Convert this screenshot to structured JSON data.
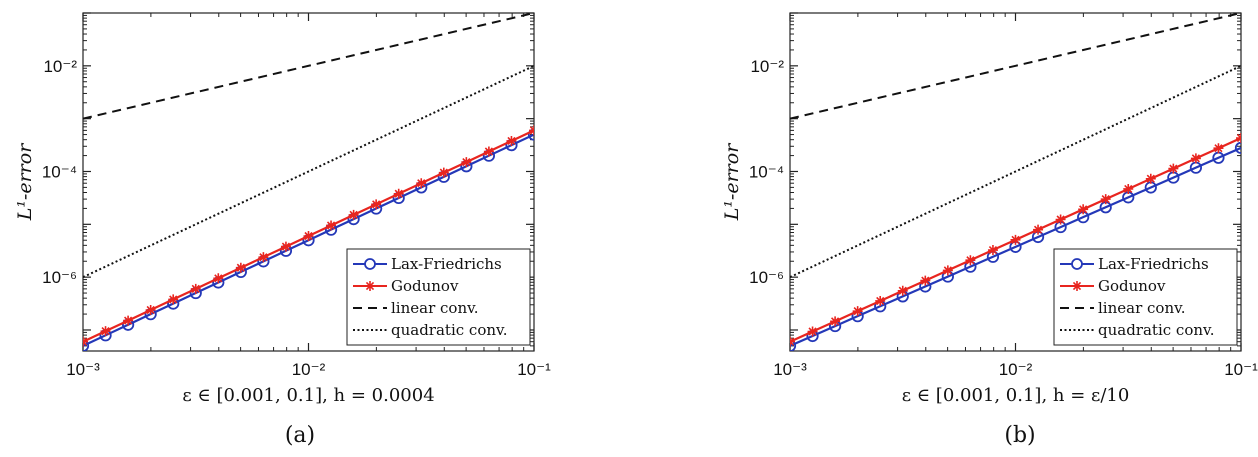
{
  "chart_data": [
    {
      "type": "line",
      "panel_caption": "(a)",
      "xlabel": "ε ∈ [0.001, 0.1], h = 0.0004",
      "ylabel": "L¹-error",
      "xscale": "log",
      "yscale": "log",
      "xlim": [
        0.001,
        0.1
      ],
      "ylim": [
        4e-08,
        0.1
      ],
      "xticks": [
        0.001,
        0.01,
        0.1
      ],
      "xtick_labels": [
        "10⁻³",
        "10⁻²",
        "10⁻¹"
      ],
      "yticks": [
        1e-06,
        0.0001,
        0.01
      ],
      "ytick_labels": [
        "10⁻⁶",
        "10⁻⁴",
        "10⁻²"
      ],
      "legend_position": "bottom-right",
      "series": [
        {
          "name": "Lax-Friedrichs",
          "color": "#2438b8",
          "marker": "circle",
          "line": "solid",
          "start": 0.001,
          "end": 0.1,
          "n_points": 21,
          "y_start": 5e-08,
          "y_end": 0.0005
        },
        {
          "name": "Godunov",
          "color": "#e8251f",
          "marker": "star",
          "line": "solid",
          "start": 0.001,
          "end": 0.1,
          "n_points": 21,
          "y_start": 6e-08,
          "y_end": 0.0006
        },
        {
          "name": "linear conv.",
          "color": "#111111",
          "marker": "none",
          "line": "dashed",
          "x": [
            0.001,
            0.1
          ],
          "y": [
            0.001,
            0.1
          ]
        },
        {
          "name": "quadratic conv.",
          "color": "#111111",
          "marker": "none",
          "line": "dotted",
          "x": [
            0.001,
            0.1
          ],
          "y": [
            1e-06,
            0.01
          ]
        }
      ]
    },
    {
      "type": "line",
      "panel_caption": "(b)",
      "xlabel": "ε ∈ [0.001, 0.1], h = ε/10",
      "ylabel": "L¹-error",
      "xscale": "log",
      "yscale": "log",
      "xlim": [
        0.001,
        0.1
      ],
      "ylim": [
        4e-08,
        0.1
      ],
      "xticks": [
        0.001,
        0.01,
        0.1
      ],
      "xtick_labels": [
        "10⁻³",
        "10⁻²",
        "10⁻¹"
      ],
      "yticks": [
        1e-06,
        0.0001,
        0.01
      ],
      "ytick_labels": [
        "10⁻⁶",
        "10⁻⁴",
        "10⁻²"
      ],
      "legend_position": "bottom-right",
      "series": [
        {
          "name": "Lax-Friedrichs",
          "color": "#2438b8",
          "marker": "circle",
          "line": "solid",
          "start": 0.001,
          "end": 0.1,
          "n_points": 21,
          "y_start": 5e-08,
          "y_end": 0.00028
        },
        {
          "name": "Godunov",
          "color": "#e8251f",
          "marker": "star",
          "line": "solid",
          "start": 0.001,
          "end": 0.1,
          "n_points": 21,
          "y_start": 6e-08,
          "y_end": 0.00043
        },
        {
          "name": "linear conv.",
          "color": "#111111",
          "marker": "none",
          "line": "dashed",
          "x": [
            0.001,
            0.1
          ],
          "y": [
            0.001,
            0.1
          ]
        },
        {
          "name": "quadratic conv.",
          "color": "#111111",
          "marker": "none",
          "line": "dotted",
          "x": [
            0.001,
            0.1
          ],
          "y": [
            1e-06,
            0.01
          ]
        }
      ]
    }
  ]
}
